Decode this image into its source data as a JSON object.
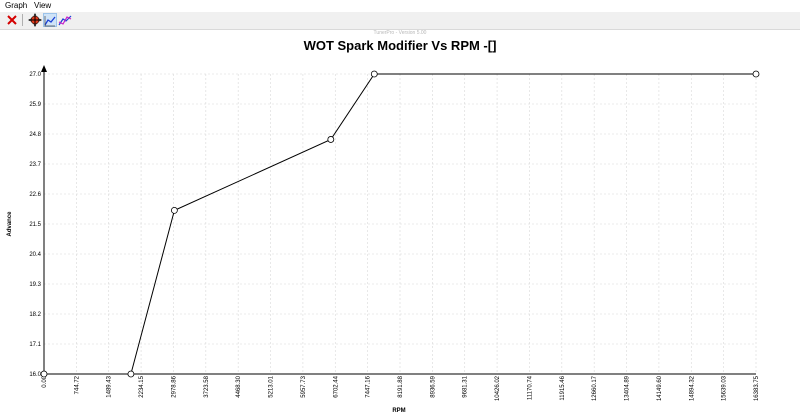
{
  "menu": {
    "items": [
      "Graph",
      "View"
    ]
  },
  "toolbar": {
    "buttons": [
      {
        "name": "close-graph-button",
        "icon": "red-x-icon"
      },
      {
        "name": "pan-button",
        "icon": "crosshair-move-icon"
      },
      {
        "name": "line-graph-button",
        "icon": "line-graph-icon"
      },
      {
        "name": "compare-graph-button",
        "icon": "multi-line-graph-icon"
      }
    ]
  },
  "watermark": "TunerPro - Version 5.00",
  "chart_data": {
    "type": "line",
    "title": "WOT Spark Modifier Vs RPM -[]",
    "xlabel": "RPM",
    "ylabel": "Advance",
    "x_ticks": [
      "0.00",
      "744.72",
      "1489.43",
      "2234.15",
      "2978.86",
      "3723.58",
      "4468.30",
      "5213.01",
      "5957.73",
      "6702.44",
      "7447.16",
      "8191.88",
      "8936.59",
      "9681.31",
      "10426.02",
      "11170.74",
      "11915.46",
      "12660.17",
      "13404.89",
      "14149.60",
      "14894.32",
      "15639.03",
      "16383.75"
    ],
    "y_ticks": [
      "16.0",
      "17.1",
      "18.2",
      "19.3",
      "20.4",
      "21.5",
      "22.6",
      "23.7",
      "24.8",
      "25.9",
      "27.0"
    ],
    "xlim": [
      0,
      16383.75
    ],
    "ylim": [
      16.0,
      27.0
    ],
    "grid": true,
    "series": [
      {
        "x": [
          0,
          2000,
          3000,
          6600,
          7600,
          16383.75
        ],
        "y": [
          16.0,
          16.0,
          22.0,
          24.6,
          27.0,
          27.0
        ]
      }
    ],
    "colors": {
      "line": "#000000",
      "grid": "#d8d8d8",
      "marker_fill": "#ffffff"
    }
  }
}
